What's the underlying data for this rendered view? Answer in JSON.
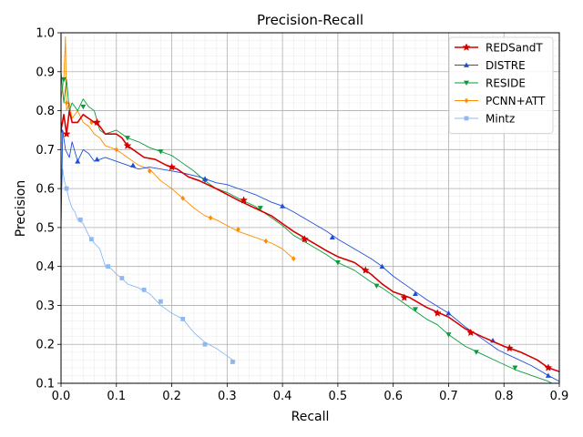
{
  "chart_data": {
    "type": "line",
    "title": "Precision-Recall",
    "xlabel": "Recall",
    "ylabel": "Precision",
    "xlim": [
      0.0,
      0.9
    ],
    "ylim": [
      0.1,
      1.0
    ],
    "xticks": [
      "0.0",
      "0.1",
      "0.2",
      "0.3",
      "0.4",
      "0.5",
      "0.6",
      "0.7",
      "0.8",
      "0.9"
    ],
    "yticks": [
      "0.1",
      "0.2",
      "0.3",
      "0.4",
      "0.5",
      "0.6",
      "0.7",
      "0.8",
      "0.9",
      "1.0"
    ],
    "grid": "major and minor",
    "legend_position": "top-right",
    "series": [
      {
        "name": "REDSandT",
        "color": "#d40000",
        "marker": "star",
        "points": [
          [
            0.0,
            0.75
          ],
          [
            0.005,
            0.79
          ],
          [
            0.01,
            0.74
          ],
          [
            0.015,
            0.8
          ],
          [
            0.02,
            0.77
          ],
          [
            0.03,
            0.77
          ],
          [
            0.04,
            0.79
          ],
          [
            0.05,
            0.78
          ],
          [
            0.06,
            0.77
          ],
          [
            0.07,
            0.76
          ],
          [
            0.08,
            0.74
          ],
          [
            0.09,
            0.74
          ],
          [
            0.1,
            0.74
          ],
          [
            0.11,
            0.73
          ],
          [
            0.12,
            0.71
          ],
          [
            0.13,
            0.7
          ],
          [
            0.15,
            0.68
          ],
          [
            0.17,
            0.675
          ],
          [
            0.19,
            0.66
          ],
          [
            0.21,
            0.65
          ],
          [
            0.23,
            0.63
          ],
          [
            0.25,
            0.62
          ],
          [
            0.28,
            0.6
          ],
          [
            0.3,
            0.585
          ],
          [
            0.32,
            0.57
          ],
          [
            0.35,
            0.55
          ],
          [
            0.38,
            0.53
          ],
          [
            0.4,
            0.51
          ],
          [
            0.42,
            0.49
          ],
          [
            0.45,
            0.465
          ],
          [
            0.48,
            0.44
          ],
          [
            0.5,
            0.425
          ],
          [
            0.53,
            0.41
          ],
          [
            0.56,
            0.38
          ],
          [
            0.58,
            0.355
          ],
          [
            0.6,
            0.335
          ],
          [
            0.63,
            0.32
          ],
          [
            0.66,
            0.295
          ],
          [
            0.7,
            0.27
          ],
          [
            0.73,
            0.24
          ],
          [
            0.76,
            0.22
          ],
          [
            0.8,
            0.195
          ],
          [
            0.83,
            0.18
          ],
          [
            0.86,
            0.16
          ],
          [
            0.88,
            0.14
          ],
          [
            0.9,
            0.13
          ]
        ],
        "marker_points": [
          [
            0.01,
            0.74
          ],
          [
            0.065,
            0.77
          ],
          [
            0.12,
            0.71
          ],
          [
            0.2,
            0.655
          ],
          [
            0.33,
            0.57
          ],
          [
            0.44,
            0.47
          ],
          [
            0.55,
            0.39
          ],
          [
            0.62,
            0.32
          ],
          [
            0.68,
            0.28
          ],
          [
            0.74,
            0.23
          ],
          [
            0.81,
            0.19
          ],
          [
            0.88,
            0.14
          ]
        ]
      },
      {
        "name": "DISTRE",
        "color": "#1f4fd8",
        "marker": "triangle-up",
        "points": [
          [
            0.0,
            0.5
          ],
          [
            0.003,
            0.75
          ],
          [
            0.008,
            0.7
          ],
          [
            0.015,
            0.68
          ],
          [
            0.02,
            0.72
          ],
          [
            0.03,
            0.67
          ],
          [
            0.04,
            0.7
          ],
          [
            0.05,
            0.69
          ],
          [
            0.06,
            0.67
          ],
          [
            0.08,
            0.68
          ],
          [
            0.1,
            0.67
          ],
          [
            0.12,
            0.66
          ],
          [
            0.14,
            0.65
          ],
          [
            0.16,
            0.655
          ],
          [
            0.18,
            0.65
          ],
          [
            0.2,
            0.645
          ],
          [
            0.22,
            0.64
          ],
          [
            0.25,
            0.63
          ],
          [
            0.28,
            0.615
          ],
          [
            0.3,
            0.61
          ],
          [
            0.33,
            0.595
          ],
          [
            0.35,
            0.585
          ],
          [
            0.38,
            0.565
          ],
          [
            0.4,
            0.555
          ],
          [
            0.42,
            0.54
          ],
          [
            0.45,
            0.515
          ],
          [
            0.48,
            0.49
          ],
          [
            0.5,
            0.47
          ],
          [
            0.53,
            0.445
          ],
          [
            0.56,
            0.42
          ],
          [
            0.58,
            0.4
          ],
          [
            0.6,
            0.375
          ],
          [
            0.63,
            0.345
          ],
          [
            0.66,
            0.315
          ],
          [
            0.7,
            0.28
          ],
          [
            0.73,
            0.245
          ],
          [
            0.76,
            0.215
          ],
          [
            0.79,
            0.185
          ],
          [
            0.82,
            0.165
          ],
          [
            0.85,
            0.145
          ],
          [
            0.88,
            0.12
          ],
          [
            0.9,
            0.105
          ]
        ],
        "marker_points": [
          [
            0.0,
            0.75
          ],
          [
            0.03,
            0.67
          ],
          [
            0.065,
            0.675
          ],
          [
            0.13,
            0.66
          ],
          [
            0.26,
            0.625
          ],
          [
            0.4,
            0.555
          ],
          [
            0.49,
            0.475
          ],
          [
            0.58,
            0.4
          ],
          [
            0.64,
            0.33
          ],
          [
            0.7,
            0.28
          ],
          [
            0.78,
            0.21
          ],
          [
            0.88,
            0.12
          ]
        ]
      },
      {
        "name": "RESIDE",
        "color": "#0a9b3a",
        "marker": "triangle-down",
        "points": [
          [
            0.0,
            0.9
          ],
          [
            0.005,
            0.82
          ],
          [
            0.01,
            0.88
          ],
          [
            0.015,
            0.8
          ],
          [
            0.02,
            0.82
          ],
          [
            0.03,
            0.8
          ],
          [
            0.04,
            0.83
          ],
          [
            0.05,
            0.81
          ],
          [
            0.06,
            0.8
          ],
          [
            0.07,
            0.75
          ],
          [
            0.08,
            0.74
          ],
          [
            0.1,
            0.75
          ],
          [
            0.12,
            0.73
          ],
          [
            0.14,
            0.72
          ],
          [
            0.16,
            0.705
          ],
          [
            0.18,
            0.695
          ],
          [
            0.2,
            0.685
          ],
          [
            0.22,
            0.665
          ],
          [
            0.24,
            0.645
          ],
          [
            0.26,
            0.62
          ],
          [
            0.28,
            0.6
          ],
          [
            0.3,
            0.59
          ],
          [
            0.32,
            0.575
          ],
          [
            0.35,
            0.555
          ],
          [
            0.38,
            0.525
          ],
          [
            0.4,
            0.505
          ],
          [
            0.42,
            0.48
          ],
          [
            0.45,
            0.455
          ],
          [
            0.48,
            0.43
          ],
          [
            0.5,
            0.41
          ],
          [
            0.53,
            0.39
          ],
          [
            0.56,
            0.36
          ],
          [
            0.58,
            0.345
          ],
          [
            0.6,
            0.325
          ],
          [
            0.63,
            0.295
          ],
          [
            0.66,
            0.265
          ],
          [
            0.68,
            0.25
          ],
          [
            0.7,
            0.225
          ],
          [
            0.73,
            0.195
          ],
          [
            0.76,
            0.175
          ],
          [
            0.79,
            0.155
          ],
          [
            0.82,
            0.135
          ],
          [
            0.86,
            0.115
          ],
          [
            0.88,
            0.105
          ],
          [
            0.9,
            0.09
          ]
        ],
        "marker_points": [
          [
            0.005,
            0.88
          ],
          [
            0.04,
            0.81
          ],
          [
            0.12,
            0.73
          ],
          [
            0.18,
            0.695
          ],
          [
            0.26,
            0.62
          ],
          [
            0.36,
            0.55
          ],
          [
            0.5,
            0.41
          ],
          [
            0.57,
            0.35
          ],
          [
            0.64,
            0.29
          ],
          [
            0.7,
            0.225
          ],
          [
            0.75,
            0.18
          ],
          [
            0.82,
            0.14
          ]
        ]
      },
      {
        "name": "PCNN+ATT",
        "color": "#ff8c00",
        "marker": "diamond",
        "points": [
          [
            0.0,
            0.83
          ],
          [
            0.005,
            0.88
          ],
          [
            0.008,
            0.99
          ],
          [
            0.01,
            0.8
          ],
          [
            0.015,
            0.82
          ],
          [
            0.02,
            0.78
          ],
          [
            0.03,
            0.8
          ],
          [
            0.04,
            0.77
          ],
          [
            0.05,
            0.76
          ],
          [
            0.06,
            0.74
          ],
          [
            0.07,
            0.73
          ],
          [
            0.08,
            0.71
          ],
          [
            0.1,
            0.7
          ],
          [
            0.12,
            0.68
          ],
          [
            0.14,
            0.66
          ],
          [
            0.16,
            0.65
          ],
          [
            0.18,
            0.62
          ],
          [
            0.2,
            0.6
          ],
          [
            0.22,
            0.575
          ],
          [
            0.24,
            0.55
          ],
          [
            0.26,
            0.53
          ],
          [
            0.28,
            0.52
          ],
          [
            0.3,
            0.505
          ],
          [
            0.32,
            0.49
          ],
          [
            0.35,
            0.475
          ],
          [
            0.38,
            0.46
          ],
          [
            0.4,
            0.445
          ],
          [
            0.42,
            0.42
          ]
        ],
        "marker_points": [
          [
            0.01,
            0.82
          ],
          [
            0.055,
            0.77
          ],
          [
            0.1,
            0.7
          ],
          [
            0.16,
            0.645
          ],
          [
            0.22,
            0.575
          ],
          [
            0.27,
            0.525
          ],
          [
            0.32,
            0.495
          ],
          [
            0.37,
            0.465
          ],
          [
            0.42,
            0.42
          ]
        ]
      },
      {
        "name": "Mintz",
        "color": "#8fb8f0",
        "marker": "square",
        "points": [
          [
            0.0,
            0.58
          ],
          [
            0.003,
            0.65
          ],
          [
            0.006,
            0.62
          ],
          [
            0.01,
            0.6
          ],
          [
            0.015,
            0.57
          ],
          [
            0.02,
            0.55
          ],
          [
            0.025,
            0.54
          ],
          [
            0.03,
            0.52
          ],
          [
            0.04,
            0.51
          ],
          [
            0.05,
            0.48
          ],
          [
            0.06,
            0.46
          ],
          [
            0.07,
            0.445
          ],
          [
            0.08,
            0.4
          ],
          [
            0.09,
            0.395
          ],
          [
            0.1,
            0.38
          ],
          [
            0.11,
            0.37
          ],
          [
            0.12,
            0.355
          ],
          [
            0.14,
            0.345
          ],
          [
            0.16,
            0.33
          ],
          [
            0.18,
            0.3
          ],
          [
            0.2,
            0.28
          ],
          [
            0.22,
            0.265
          ],
          [
            0.24,
            0.23
          ],
          [
            0.26,
            0.205
          ],
          [
            0.28,
            0.19
          ],
          [
            0.3,
            0.17
          ],
          [
            0.315,
            0.155
          ]
        ],
        "marker_points": [
          [
            0.01,
            0.6
          ],
          [
            0.035,
            0.52
          ],
          [
            0.055,
            0.47
          ],
          [
            0.085,
            0.4
          ],
          [
            0.11,
            0.37
          ],
          [
            0.15,
            0.34
          ],
          [
            0.18,
            0.31
          ],
          [
            0.22,
            0.265
          ],
          [
            0.26,
            0.2
          ],
          [
            0.31,
            0.155
          ]
        ]
      }
    ]
  }
}
